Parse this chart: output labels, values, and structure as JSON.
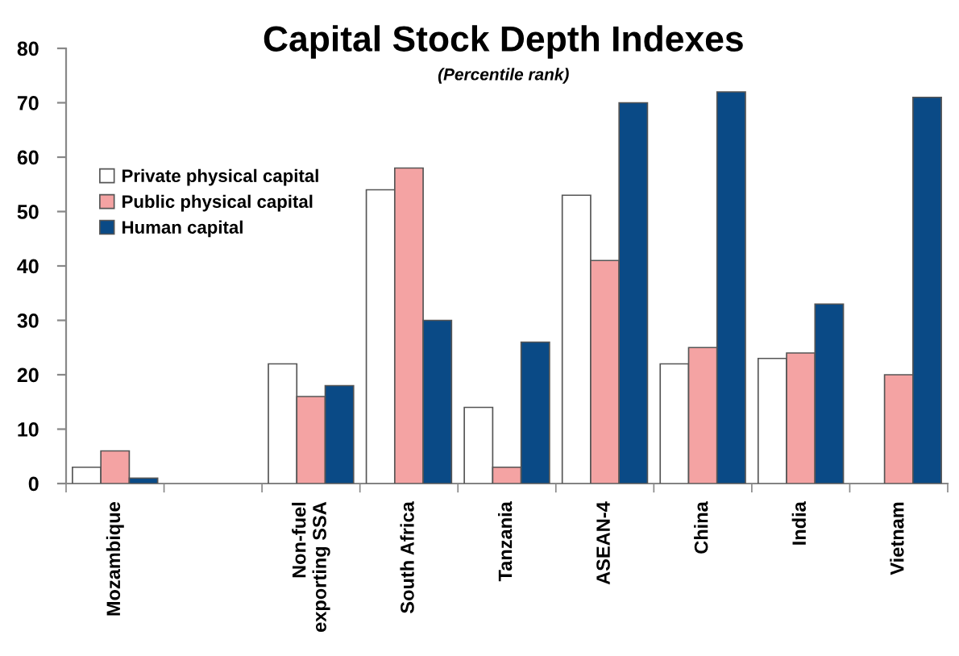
{
  "chart_data": {
    "type": "bar",
    "title": "Capital Stock Depth Indexes",
    "subtitle": "(Percentile rank)",
    "categories": [
      "Mozambique",
      null,
      "Non-fuel\nexporting SSA",
      "South Africa",
      "Tanzania",
      "ASEAN-4",
      "China",
      "India",
      "Vietnam"
    ],
    "series": [
      {
        "name": "Private physical capital",
        "color": "#ffffff",
        "values": [
          3,
          null,
          22,
          54,
          14,
          53,
          22,
          23,
          null
        ]
      },
      {
        "name": "Public physical capital",
        "color": "#f4a3a3",
        "values": [
          6,
          null,
          16,
          58,
          3,
          41,
          25,
          24,
          20
        ]
      },
      {
        "name": "Human capital",
        "color": "#0a4a86",
        "values": [
          1,
          null,
          18,
          30,
          26,
          70,
          72,
          33,
          71
        ]
      }
    ],
    "ylim": [
      0,
      80
    ],
    "yticks": [
      0,
      10,
      20,
      30,
      40,
      50,
      60,
      70,
      80
    ],
    "legend": "top left"
  }
}
